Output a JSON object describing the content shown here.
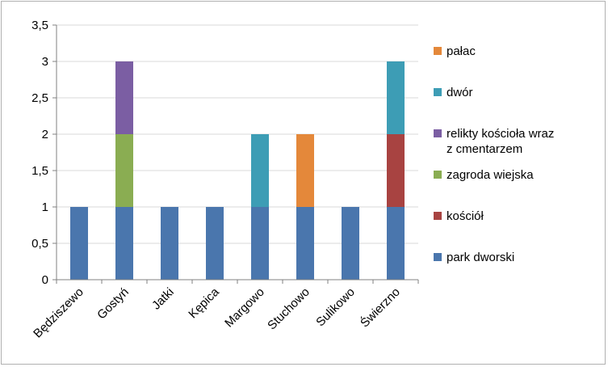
{
  "chart_data": {
    "type": "bar",
    "stacked": true,
    "title": "",
    "xlabel": "",
    "ylabel": "",
    "categories": [
      "Będziszewo",
      "Gostyń",
      "Jatki",
      "Kępica",
      "Margowo",
      "Stuchowo",
      "Sulikowo",
      "Świerzno"
    ],
    "ylim": [
      0,
      3.5
    ],
    "yticks": [
      "0",
      "0,5",
      "1",
      "1,5",
      "2",
      "2,5",
      "3",
      "3,5"
    ],
    "grid": true,
    "legend_position": "right",
    "series": [
      {
        "name": "park dworski",
        "color": "#4a76ad",
        "values": [
          1,
          1,
          1,
          1,
          1,
          1,
          1,
          1
        ]
      },
      {
        "name": "kościół",
        "color": "#a84341",
        "values": [
          0,
          0,
          0,
          0,
          0,
          0,
          0,
          1
        ]
      },
      {
        "name": "zagroda wiejska",
        "color": "#8aad52",
        "values": [
          0,
          1,
          0,
          0,
          0,
          0,
          0,
          0
        ]
      },
      {
        "name": "relikty kościoła wraz z cmentarzem",
        "legend_lines": [
          "relikty kościoła wraz",
          "z cmentarzem"
        ],
        "color": "#7b5ea3",
        "values": [
          0,
          1,
          0,
          0,
          0,
          0,
          0,
          0
        ]
      },
      {
        "name": "dwór",
        "color": "#3d9db5",
        "values": [
          0,
          0,
          0,
          0,
          1,
          0,
          0,
          1
        ]
      },
      {
        "name": "pałac",
        "color": "#e4883a",
        "values": [
          0,
          0,
          0,
          0,
          0,
          1,
          0,
          0
        ]
      }
    ]
  }
}
